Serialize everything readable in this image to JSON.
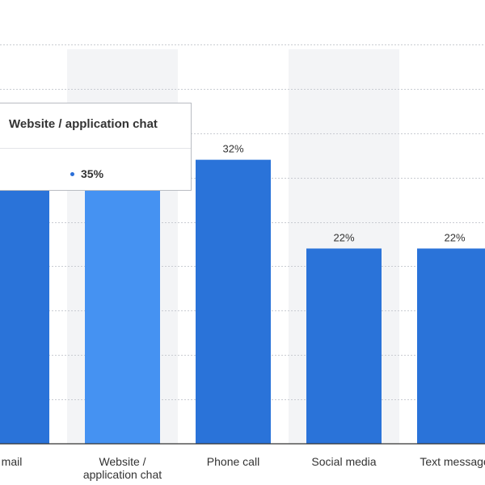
{
  "chart_data": {
    "type": "bar",
    "categories": [
      "Email",
      "Website / application chat",
      "Phone call",
      "Social media",
      "Text message"
    ],
    "category_lines": [
      [
        "mail"
      ],
      [
        "Website /",
        "application chat"
      ],
      [
        "Phone call"
      ],
      [
        "Social media"
      ],
      [
        "Text message"
      ]
    ],
    "values": [
      null,
      35,
      32,
      22,
      22
    ],
    "value_labels": [
      "",
      "35%",
      "32%",
      "22%",
      "22%"
    ],
    "unit": "%",
    "highlighted_index": 1,
    "ylim": [
      0,
      50
    ],
    "grid": true,
    "colors": {
      "bar": "#2a73d9",
      "bar_highlight": "#4592f2",
      "band": "#f3f4f6"
    }
  },
  "tooltip": {
    "title": "Website / application chat",
    "value": "35%",
    "dot_color": "#2b6fd8"
  }
}
